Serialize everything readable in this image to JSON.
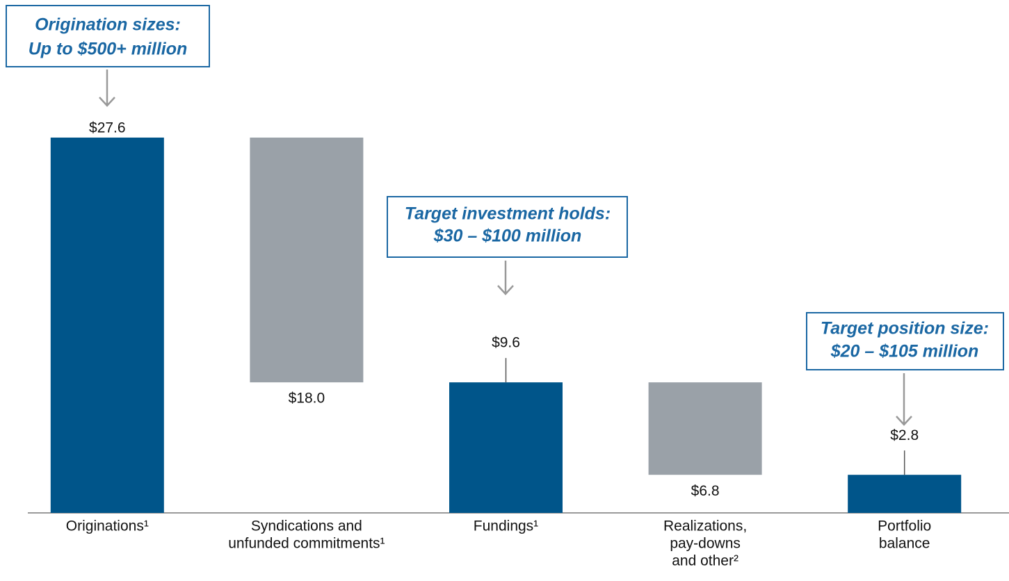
{
  "chart_data": {
    "type": "waterfall",
    "categories": [
      [
        "Originations¹"
      ],
      [
        "Syndications and",
        "unfunded commitments¹"
      ],
      [
        "Fundings¹"
      ],
      [
        "Realizations,",
        "pay-downs",
        "and other²"
      ],
      [
        "Portfolio",
        "balance"
      ]
    ],
    "values": [
      27.6,
      18.0,
      9.6,
      6.8,
      2.8
    ],
    "value_labels": [
      "$27.6",
      "$18.0",
      "$9.6",
      "$6.8",
      "$2.8"
    ],
    "measures": [
      "total",
      "decrease",
      "total",
      "decrease",
      "total"
    ],
    "colors": {
      "total": "#00558a",
      "decrease": "#9aa1a8"
    },
    "ylim": [
      0,
      30
    ],
    "annotations": [
      [
        "Origination sizes:",
        "Up to $500+ million"
      ],
      [
        "Target investment holds:",
        "$30 – $100 million"
      ],
      [
        "Target position size:",
        "$20 – $105 million"
      ]
    ]
  }
}
